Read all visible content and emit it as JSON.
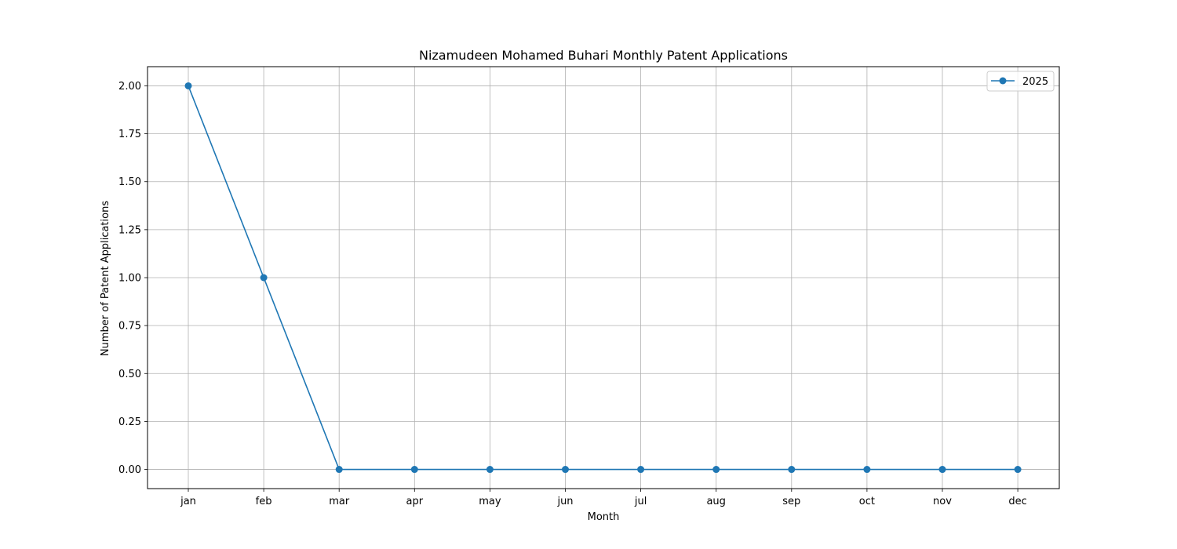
{
  "colors": {
    "series": "#1f77b4",
    "grid": "#b0b0b0",
    "axis": "#000000",
    "background": "#ffffff"
  },
  "chart_data": {
    "type": "line",
    "title": "Nizamudeen Mohamed Buhari Monthly Patent Applications",
    "xlabel": "Month",
    "ylabel": "Number of Patent Applications",
    "categories": [
      "jan",
      "feb",
      "mar",
      "apr",
      "may",
      "jun",
      "jul",
      "aug",
      "sep",
      "oct",
      "nov",
      "dec"
    ],
    "series": [
      {
        "name": "2025",
        "values": [
          2,
          1,
          0,
          0,
          0,
          0,
          0,
          0,
          0,
          0,
          0,
          0
        ],
        "marker": "circle"
      }
    ],
    "ylim": [
      -0.1,
      2.1
    ],
    "yticks": [
      0.0,
      0.25,
      0.5,
      0.75,
      1.0,
      1.25,
      1.5,
      1.75,
      2.0
    ],
    "ytick_labels": [
      "0.00",
      "0.25",
      "0.50",
      "0.75",
      "1.00",
      "1.25",
      "1.50",
      "1.75",
      "2.00"
    ],
    "grid": true,
    "legend_position": "top-right"
  }
}
